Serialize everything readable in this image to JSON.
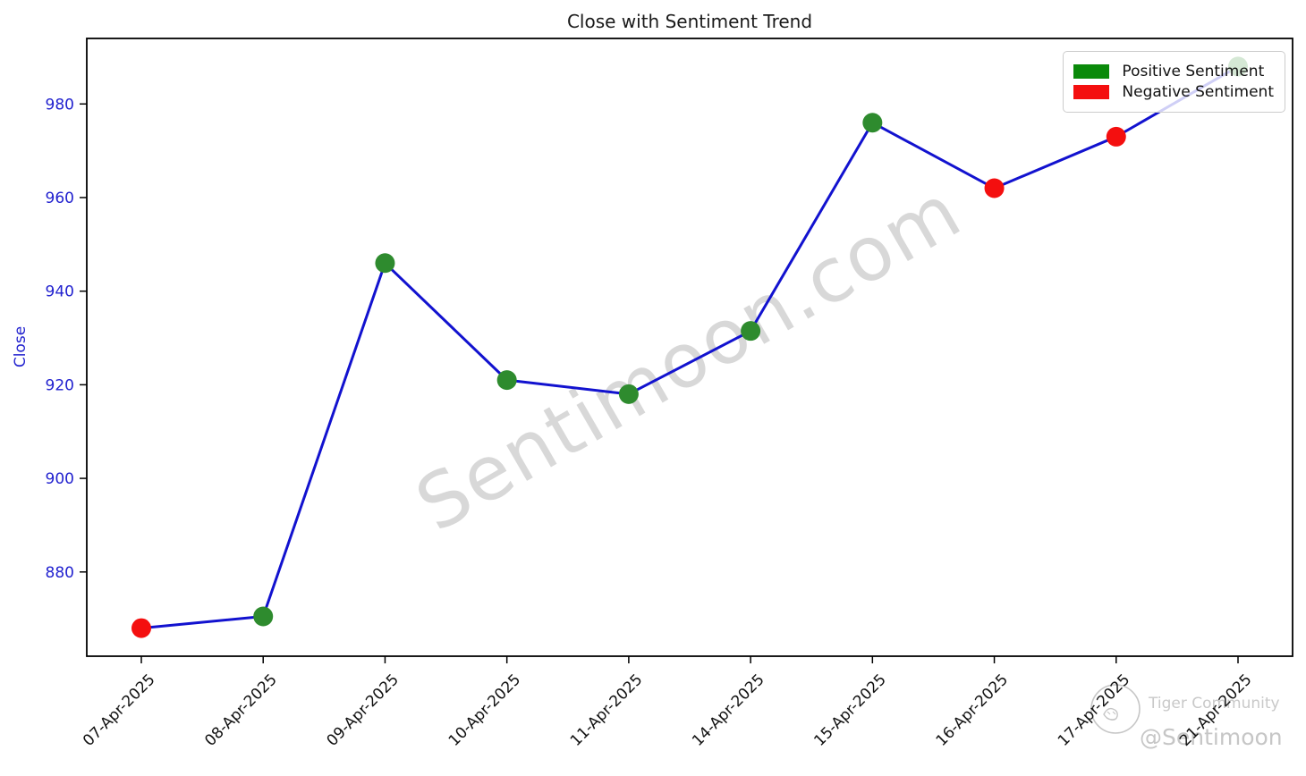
{
  "chart": {
    "title": "Close with Sentiment Trend",
    "ylabel": "Close"
  },
  "legend": {
    "items": [
      {
        "label": "Positive Sentiment",
        "color": "#0a8a0a"
      },
      {
        "label": "Negative Sentiment",
        "color": "#f40f0f"
      }
    ]
  },
  "watermark": {
    "main": "Sentimoon.com",
    "brand": "Tiger Community",
    "handle": "@Sentimoon"
  },
  "chart_data": {
    "type": "line",
    "title": "Close with Sentiment Trend",
    "xlabel": "",
    "ylabel": "Close",
    "x": [
      "07-Apr-2025",
      "08-Apr-2025",
      "09-Apr-2025",
      "10-Apr-2025",
      "11-Apr-2025",
      "14-Apr-2025",
      "15-Apr-2025",
      "16-Apr-2025",
      "17-Apr-2025",
      "21-Apr-2025"
    ],
    "series": [
      {
        "name": "Close",
        "values": [
          868,
          870.5,
          946,
          921,
          918,
          931.5,
          976,
          962,
          973,
          988
        ]
      }
    ],
    "point_sentiment": [
      "negative",
      "positive",
      "positive",
      "positive",
      "positive",
      "positive",
      "positive",
      "negative",
      "negative",
      "positive"
    ],
    "yticks": [
      880,
      900,
      920,
      940,
      960,
      980
    ],
    "ylim": [
      862,
      994
    ],
    "grid": false,
    "legend_position": "upper right",
    "colors": {
      "line": "#1212cf",
      "positive_marker": "#2e8b2e",
      "negative_marker": "#f40f0f",
      "axis_text": "#2222cf",
      "x_tick_text": "#111111"
    }
  }
}
